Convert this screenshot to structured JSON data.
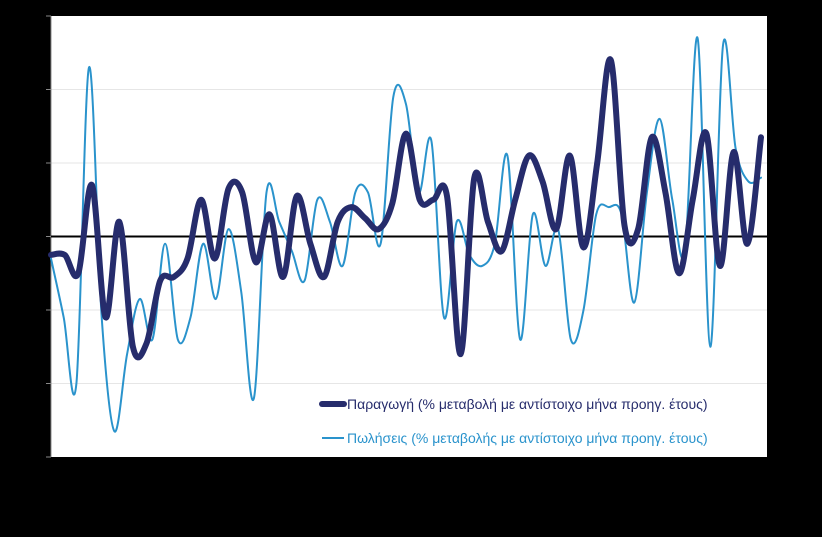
{
  "chart_data": {
    "type": "line",
    "title": "",
    "xlabel": "",
    "ylabel": "",
    "ylim": [
      -30,
      30
    ],
    "y_grid_values": [
      -20,
      -10,
      0,
      10,
      20,
      30
    ],
    "x_count": 72,
    "grid": true,
    "legend_position": "bottom-right",
    "colors": {
      "background": "#000000",
      "plot_area": "#ffffff",
      "zero_line": "#000000",
      "grid": "#e6e6e6"
    },
    "series": [
      {
        "name": "Παραγωγή (% μεταβολή με αντίστοιχο μήνα προηγ. έτους)",
        "color": "#262c6c",
        "values": [
          -2.5,
          -2.5,
          -5,
          7,
          -11,
          2,
          -15,
          -14.5,
          -6,
          -5.5,
          -3,
          5,
          -3,
          6.5,
          6,
          -3.5,
          3,
          -5.5,
          5.5,
          -1,
          -5.5,
          2,
          4,
          2.5,
          1,
          4.5,
          14,
          5,
          5,
          5.5,
          -16,
          8,
          2,
          -2,
          5,
          11,
          7.5,
          1,
          11,
          -1.5,
          10,
          24,
          1.5,
          1,
          13.5,
          6,
          -5,
          5,
          14,
          -4,
          11.5,
          -1,
          13.5
        ]
      },
      {
        "name": "Πωλήσεις (% μεταβολής με αντίστοιχο μήνα προηγ. έτους)",
        "color": "#2a93cc",
        "values": [
          -3,
          -11,
          -20,
          23,
          -11,
          -26.5,
          -16,
          -8.5,
          -14,
          -1,
          -14,
          -11,
          -1,
          -8.5,
          1,
          -7.5,
          -22,
          6,
          2,
          -2,
          -6,
          5,
          2,
          -4,
          6,
          6,
          -1,
          19,
          18,
          6,
          13,
          -11,
          2,
          -2.5,
          -4,
          -1,
          11,
          -14,
          3,
          -4,
          1,
          -14,
          -10,
          3,
          4,
          3,
          -9,
          6,
          16,
          5,
          -2,
          27,
          -15,
          26,
          12,
          7.5,
          8
        ]
      }
    ]
  }
}
